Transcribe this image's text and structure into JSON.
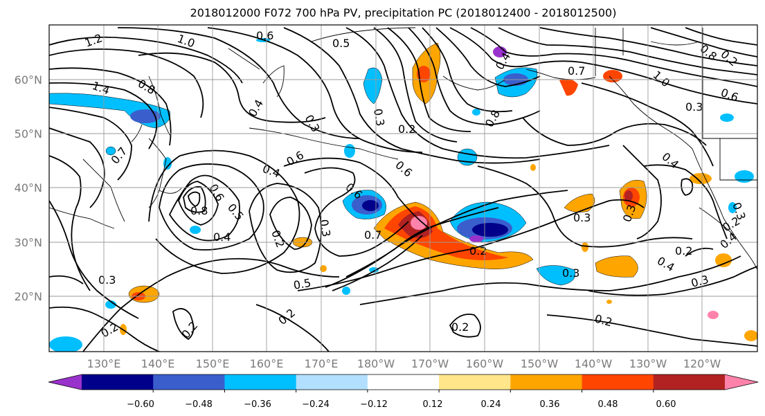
{
  "title": "2018012000 F072 700 hPa PV, precipitation PC (2018012400 - 2018012500)",
  "lat_labels": [
    "60°N",
    "50°N",
    "40°N",
    "30°N",
    "20°N"
  ],
  "lon_labels": [
    "130°E",
    "140°E",
    "150°E",
    "160°E",
    "170°E",
    "180°W",
    "170°W",
    "160°W",
    "150°W",
    "140°W",
    "130°W",
    "120°W"
  ],
  "colorbar": {
    "colors": [
      "#9932cc",
      "#00008b",
      "#3a5fcd",
      "#00bfff",
      "#b2dfff",
      "#ffffff",
      "#ffe68a",
      "#ffa500",
      "#ff4500",
      "#b22222",
      "#ff82ab"
    ],
    "tick_labels": [
      "−0.60",
      "−0.48",
      "−0.36",
      "−0.24",
      "−0.12",
      "0.12",
      "0.24",
      "0.36",
      "0.48",
      "0.60"
    ]
  },
  "contour_labels": [
    {
      "text": "1.2"
    },
    {
      "text": "1.0"
    },
    {
      "text": "0.6"
    },
    {
      "text": "0.5"
    },
    {
      "text": "1.4"
    },
    {
      "text": "0.8"
    },
    {
      "text": "0.4"
    },
    {
      "text": "0.3"
    },
    {
      "text": "0.2"
    },
    {
      "text": "0.7"
    },
    {
      "text": "0.6"
    },
    {
      "text": "0.4"
    },
    {
      "text": "0.6"
    },
    {
      "text": "0.3"
    },
    {
      "text": "0.8"
    },
    {
      "text": "0.6"
    },
    {
      "text": "0.5"
    },
    {
      "text": "0.4"
    },
    {
      "text": "0.2"
    },
    {
      "text": "0.3"
    },
    {
      "text": "0.7"
    },
    {
      "text": "0.6"
    },
    {
      "text": "0.2"
    },
    {
      "text": "0.5"
    },
    {
      "text": "0.3"
    },
    {
      "text": "0.2"
    },
    {
      "text": "0.2"
    },
    {
      "text": "0.2"
    },
    {
      "text": "0.2"
    },
    {
      "text": "0.3"
    },
    {
      "text": "0.3"
    },
    {
      "text": "0.2"
    },
    {
      "text": "0.4"
    },
    {
      "text": "0.3"
    },
    {
      "text": "0.2"
    },
    {
      "text": "0.8"
    },
    {
      "text": "0.4"
    },
    {
      "text": "0.7"
    },
    {
      "text": "1.0"
    },
    {
      "text": "0.6"
    },
    {
      "text": "0.3"
    },
    {
      "text": "0.4"
    },
    {
      "text": "0.3"
    },
    {
      "text": "0.2"
    },
    {
      "text": "0.8"
    },
    {
      "text": "0.2"
    },
    {
      "text": "0.3"
    },
    {
      "text": "0.4"
    }
  ]
}
